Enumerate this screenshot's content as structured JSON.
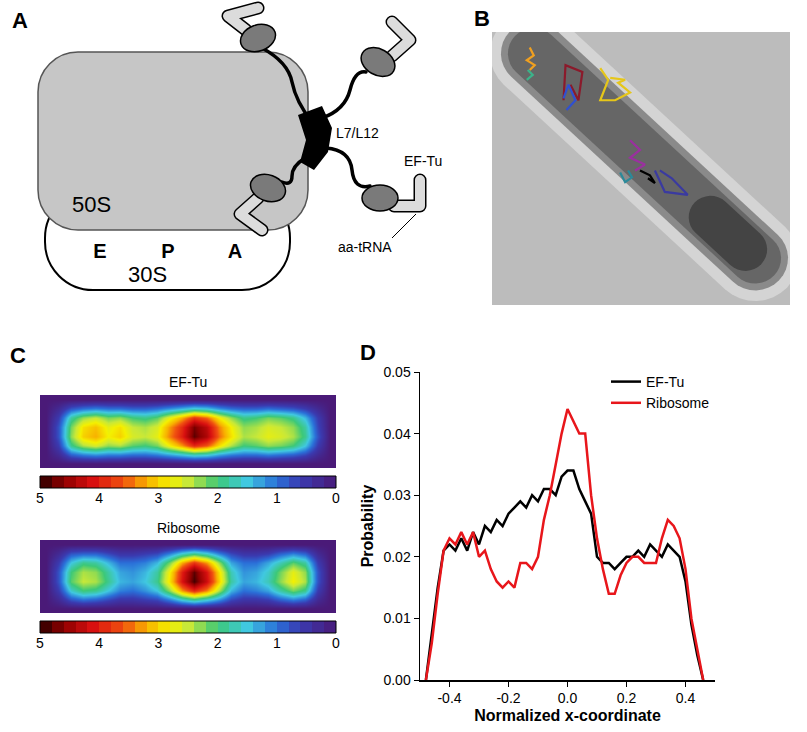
{
  "diagram": {
    "panel": "A",
    "labels": {
      "large_subunit": "50S",
      "small_subunit": "30S",
      "sites": [
        "E",
        "P",
        "A"
      ],
      "stalk": "L7/L12",
      "factor": "EF-Tu",
      "trna": "aa-tRNA"
    }
  },
  "chart_data": [
    {
      "panel": "B",
      "type": "scatter",
      "tick_labels": false,
      "xlim": [
        0,
        30
      ],
      "ylim": [
        28,
        0
      ],
      "series": [
        {
          "color": "#f0a020",
          "x": [
            3.8,
            4.2,
            3.5,
            4.3,
            3.8
          ],
          "y": [
            1.6,
            2.4,
            2.9,
            3.4,
            3.9
          ]
        },
        {
          "color": "#3cb38a",
          "x": [
            3.6,
            4.1,
            3.5
          ],
          "y": [
            3.9,
            4.4,
            4.9
          ]
        },
        {
          "color": "#8b1a2b",
          "x": [
            7.2,
            7.4,
            9.1,
            8.7,
            7.9
          ],
          "y": [
            7.0,
            3.4,
            4.1,
            7.0,
            5.4
          ]
        },
        {
          "color": "#3050d0",
          "x": [
            7.2,
            7.7,
            8.4,
            7.5
          ],
          "y": [
            6.8,
            5.4,
            7.0,
            8.0
          ]
        },
        {
          "color": "#e6c619",
          "x": [
            10.9,
            11.7,
            10.9,
            12.4,
            13.9,
            12.7,
            13.4,
            11.9
          ],
          "y": [
            3.7,
            4.9,
            7.0,
            7.0,
            6.2,
            5.2,
            4.9,
            4.7
          ]
        },
        {
          "color": "#9b30a0",
          "x": [
            13.9,
            14.9,
            13.9,
            15.4,
            14.4
          ],
          "y": [
            11.1,
            12.1,
            12.9,
            13.6,
            14.2
          ]
        },
        {
          "color": "#000000",
          "x": [
            14.9,
            15.9,
            16.4,
            15.7
          ],
          "y": [
            14.2,
            14.7,
            15.5,
            15.0
          ]
        },
        {
          "color": "#3a3aa0",
          "x": [
            16.4,
            17.4,
            19.7,
            18.1,
            16.9
          ],
          "y": [
            14.2,
            16.4,
            16.7,
            15.0,
            14.2
          ]
        },
        {
          "color": "#2a8a9a",
          "x": [
            12.9,
            13.4,
            14.1,
            13.7
          ],
          "y": [
            14.4,
            15.4,
            14.9,
            14.2
          ]
        }
      ]
    },
    {
      "panel": "C",
      "type": "heatmap",
      "title": "EF-Tu",
      "tick_labels": false,
      "zlim": [
        0,
        5
      ],
      "zticks": [
        5,
        4,
        3,
        2,
        1,
        0
      ],
      "cells": [
        [
          0,
          0,
          0,
          0,
          0,
          0,
          0,
          0,
          0,
          0,
          0,
          0,
          0,
          0,
          0,
          0,
          0,
          0,
          0,
          0,
          0,
          0,
          0,
          0
        ],
        [
          0,
          0.3,
          0.9,
          1.1,
          1.2,
          1.1,
          1.1,
          1.0,
          1.0,
          1.1,
          1.3,
          1.5,
          1.7,
          1.6,
          1.3,
          1.1,
          1.0,
          1.0,
          1.1,
          1.0,
          0.9,
          0.7,
          0.3,
          0
        ],
        [
          0,
          0.6,
          1.9,
          2.4,
          2.6,
          2.3,
          2.4,
          2.1,
          2.0,
          2.2,
          2.8,
          3.3,
          3.9,
          3.6,
          2.9,
          2.4,
          2.0,
          2.1,
          2.3,
          2.2,
          2.0,
          1.5,
          0.6,
          0
        ],
        [
          0,
          0.8,
          2.3,
          3.0,
          3.2,
          2.8,
          3.0,
          2.6,
          2.5,
          2.7,
          3.4,
          4.0,
          4.8,
          4.4,
          3.5,
          2.9,
          2.4,
          2.5,
          2.7,
          2.6,
          2.4,
          1.9,
          0.8,
          0
        ],
        [
          0,
          0.8,
          2.2,
          2.9,
          3.1,
          2.7,
          2.9,
          2.5,
          2.4,
          2.6,
          3.3,
          3.9,
          4.7,
          4.3,
          3.4,
          2.8,
          2.3,
          2.4,
          2.6,
          2.5,
          2.3,
          1.8,
          0.7,
          0
        ],
        [
          0,
          0.6,
          1.8,
          2.3,
          2.5,
          2.2,
          2.3,
          2.0,
          1.9,
          2.1,
          2.7,
          3.2,
          3.8,
          3.5,
          2.8,
          2.3,
          1.9,
          2.0,
          2.2,
          2.1,
          1.9,
          1.4,
          0.6,
          0
        ],
        [
          0,
          0.3,
          0.8,
          1.0,
          1.1,
          1.0,
          1.0,
          0.9,
          0.9,
          1.0,
          1.2,
          1.4,
          1.6,
          1.5,
          1.2,
          1.0,
          0.9,
          0.9,
          1.0,
          0.9,
          0.8,
          0.6,
          0.3,
          0
        ],
        [
          0,
          0,
          0,
          0,
          0,
          0,
          0,
          0,
          0,
          0,
          0,
          0,
          0,
          0,
          0,
          0,
          0,
          0,
          0,
          0,
          0,
          0,
          0,
          0
        ]
      ]
    },
    {
      "type": "heatmap",
      "title": "Ribosome",
      "tick_labels": false,
      "zlim": [
        0,
        5
      ],
      "zticks": [
        5,
        4,
        3,
        2,
        1,
        0
      ],
      "cells": [
        [
          0,
          0,
          0,
          0,
          0,
          0,
          0,
          0,
          0,
          0,
          0,
          0,
          0,
          0,
          0,
          0,
          0,
          0,
          0,
          0,
          0,
          0,
          0,
          0
        ],
        [
          0,
          0.3,
          0.8,
          1.0,
          0.9,
          0.7,
          0.5,
          0.5,
          0.6,
          0.7,
          1.1,
          1.6,
          1.9,
          1.6,
          1.2,
          0.7,
          0.5,
          0.5,
          0.6,
          0.9,
          1.1,
          0.9,
          0.3,
          0
        ],
        [
          0,
          0.6,
          1.6,
          2.0,
          1.9,
          1.5,
          1.1,
          1.0,
          1.2,
          1.5,
          2.3,
          3.3,
          3.9,
          3.4,
          2.4,
          1.4,
          1.0,
          1.1,
          1.3,
          1.8,
          2.2,
          1.9,
          0.6,
          0
        ],
        [
          0,
          0.8,
          2.1,
          2.5,
          2.4,
          1.9,
          1.4,
          1.3,
          1.5,
          1.9,
          2.9,
          4.1,
          4.9,
          4.2,
          3.0,
          1.8,
          1.3,
          1.4,
          1.7,
          2.3,
          2.8,
          2.4,
          0.8,
          0
        ],
        [
          0,
          0.8,
          2.0,
          2.4,
          2.3,
          1.8,
          1.3,
          1.2,
          1.4,
          1.8,
          2.8,
          4.0,
          4.8,
          4.1,
          2.9,
          1.7,
          1.2,
          1.3,
          1.6,
          2.2,
          2.7,
          2.3,
          0.8,
          0
        ],
        [
          0,
          0.6,
          1.5,
          1.9,
          1.8,
          1.4,
          1.0,
          1.0,
          1.1,
          1.4,
          2.2,
          3.2,
          3.8,
          3.3,
          2.3,
          1.3,
          1.0,
          1.0,
          1.3,
          1.7,
          2.1,
          1.8,
          0.6,
          0
        ],
        [
          0,
          0.3,
          0.8,
          0.9,
          0.9,
          0.7,
          0.5,
          0.5,
          0.6,
          0.7,
          1.1,
          1.6,
          1.9,
          1.6,
          1.1,
          0.7,
          0.5,
          0.5,
          0.6,
          0.9,
          1.1,
          0.9,
          0.3,
          0
        ],
        [
          0,
          0,
          0,
          0,
          0,
          0,
          0,
          0,
          0,
          0,
          0,
          0,
          0,
          0,
          0,
          0,
          0,
          0,
          0,
          0,
          0,
          0,
          0,
          0
        ]
      ]
    },
    {
      "panel": "D",
      "type": "line",
      "xlabel": "Normalized x-coordinate",
      "ylabel": "Probability",
      "xlim": [
        -0.5,
        0.5
      ],
      "xticks": [
        -0.4,
        -0.2,
        {
          "value": 0,
          "label": "0.0"
        },
        0.2,
        0.4
      ],
      "ylim": [
        0,
        0.05
      ],
      "yticks": [
        {
          "value": 0,
          "label": "0.00"
        },
        0.01,
        0.02,
        0.03,
        0.04,
        0.05
      ],
      "grid": false,
      "legend": "upper right",
      "x": [
        -0.48,
        -0.46,
        -0.44,
        -0.42,
        -0.4,
        -0.38,
        -0.36,
        -0.34,
        -0.32,
        -0.3,
        -0.28,
        -0.26,
        -0.24,
        -0.22,
        -0.2,
        -0.18,
        -0.16,
        -0.14,
        -0.12,
        -0.1,
        -0.08,
        -0.06,
        -0.04,
        -0.02,
        0.0,
        0.02,
        0.04,
        0.06,
        0.08,
        0.1,
        0.12,
        0.14,
        0.16,
        0.18,
        0.2,
        0.22,
        0.24,
        0.26,
        0.28,
        0.3,
        0.32,
        0.34,
        0.36,
        0.38,
        0.4,
        0.42,
        0.44,
        0.46
      ],
      "series": [
        {
          "name": "EF-Tu",
          "color": "#000000",
          "values": [
            0.0,
            0.008,
            0.015,
            0.021,
            0.022,
            0.021,
            0.023,
            0.021,
            0.024,
            0.022,
            0.025,
            0.024,
            0.026,
            0.025,
            0.027,
            0.028,
            0.029,
            0.028,
            0.03,
            0.029,
            0.031,
            0.031,
            0.03,
            0.033,
            0.034,
            0.034,
            0.031,
            0.029,
            0.027,
            0.02,
            0.019,
            0.019,
            0.018,
            0.019,
            0.02,
            0.02,
            0.021,
            0.02,
            0.022,
            0.021,
            0.02,
            0.022,
            0.021,
            0.02,
            0.016,
            0.009,
            0.004,
            0.0
          ]
        },
        {
          "name": "Ribosome",
          "color": "#e8161b",
          "values": [
            0.0,
            0.006,
            0.014,
            0.021,
            0.023,
            0.022,
            0.024,
            0.022,
            0.024,
            0.02,
            0.021,
            0.018,
            0.016,
            0.015,
            0.016,
            0.015,
            0.019,
            0.019,
            0.018,
            0.02,
            0.026,
            0.03,
            0.035,
            0.04,
            0.044,
            0.042,
            0.04,
            0.04,
            0.03,
            0.023,
            0.018,
            0.014,
            0.014,
            0.017,
            0.019,
            0.02,
            0.02,
            0.019,
            0.019,
            0.019,
            0.023,
            0.026,
            0.025,
            0.023,
            0.018,
            0.01,
            0.005,
            0.0
          ]
        }
      ]
    }
  ]
}
